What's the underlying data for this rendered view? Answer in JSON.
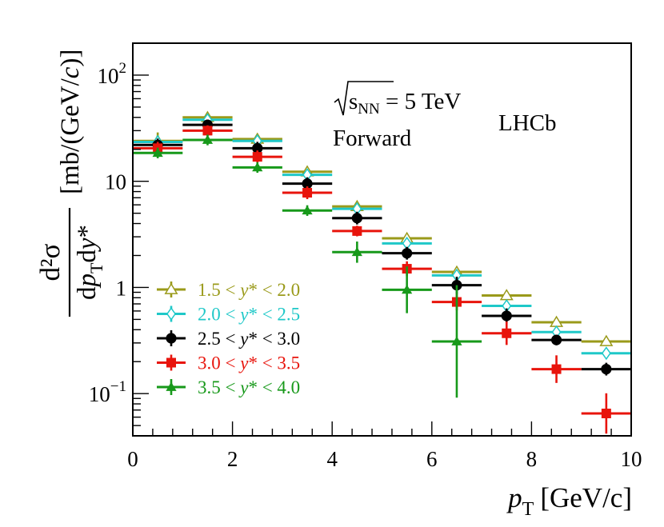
{
  "chart_data": {
    "type": "scatter",
    "ylog": true,
    "xlim": [
      0,
      10
    ],
    "ylim": [
      0.04,
      200
    ],
    "xlabel": {
      "var": "p",
      "sub": "T",
      "unit": "[GeV/c]"
    },
    "ylabel": {
      "num": "d²σ",
      "den": "dp_T dy*",
      "unit": "[mb/(GeV/c)]"
    },
    "x_ticks": [
      "0",
      "2",
      "4",
      "6",
      "8",
      "10"
    ],
    "x_tick_values": [
      0,
      2,
      4,
      6,
      8,
      10
    ],
    "y_ticks": [
      {
        "value": 0.1,
        "base": "10",
        "exp": "−1"
      },
      {
        "value": 1,
        "base": "1",
        "exp": ""
      },
      {
        "value": 10,
        "base": "10",
        "exp": ""
      },
      {
        "value": 100,
        "base": "10",
        "exp": "2"
      }
    ],
    "annotations": {
      "energy_prefix": "s",
      "energy_sub": "NN",
      "energy_value": " = 5 TeV",
      "experiment": "LHCb",
      "direction": "Forward"
    },
    "x": [
      0.5,
      1.5,
      2.5,
      3.5,
      4.5,
      5.5,
      6.5,
      7.5,
      8.5,
      9.5
    ],
    "series": [
      {
        "name": "1.5 < y* < 2.0",
        "lo": "1.5",
        "hi": "2.0",
        "color": "#9a9a1a",
        "marker": "open-triangle",
        "values": [
          24,
          40,
          25,
          12.3,
          5.8,
          2.9,
          1.4,
          0.84,
          0.47,
          0.31
        ],
        "errors": [
          0.08,
          0.04,
          0.04,
          0.04,
          0.04,
          0.04,
          0.04,
          0.04,
          0.04,
          0.04
        ]
      },
      {
        "name": "2.0 < y* < 2.5",
        "lo": "2.0",
        "hi": "2.5",
        "color": "#1fc8c8",
        "marker": "open-diamond",
        "values": [
          23.5,
          38,
          24,
          11.5,
          5.5,
          2.6,
          1.3,
          0.67,
          0.38,
          0.24
        ],
        "errors": [
          0.06,
          0.04,
          0.04,
          0.04,
          0.04,
          0.04,
          0.04,
          0.04,
          0.04,
          0.04
        ]
      },
      {
        "name": "2.5 < y* < 3.0",
        "lo": "2.5",
        "hi": "3.0",
        "color": "#000000",
        "marker": "filled-circle",
        "values": [
          22,
          34,
          20.5,
          9.5,
          4.5,
          2.1,
          1.05,
          0.54,
          0.32,
          0.17
        ],
        "errors": [
          0.06,
          0.05,
          0.06,
          0.06,
          0.06,
          0.06,
          0.08,
          0.07,
          0.05,
          0.06
        ]
      },
      {
        "name": "3.0 < y* < 3.5",
        "lo": "3.0",
        "hi": "3.5",
        "color": "#e8140c",
        "marker": "filled-square",
        "values": [
          20.5,
          30,
          17,
          7.8,
          3.4,
          1.5,
          0.73,
          0.37,
          0.17,
          0.065
        ],
        "errors": [
          0.06,
          0.05,
          0.06,
          0.06,
          0.05,
          0.07,
          0.08,
          0.11,
          0.13,
          0.19
        ]
      },
      {
        "name": "3.5 < y* < 4.0",
        "lo": "3.5",
        "hi": "4.0",
        "color": "#17991a",
        "marker": "filled-triangle",
        "values": [
          18.5,
          24.5,
          13.5,
          5.3,
          2.15,
          0.95,
          0.31,
          0,
          0,
          0
        ],
        "errors": [
          0.05,
          0.05,
          0.05,
          0.05,
          0.1,
          0.22,
          0.53,
          0,
          0,
          0
        ]
      }
    ]
  }
}
